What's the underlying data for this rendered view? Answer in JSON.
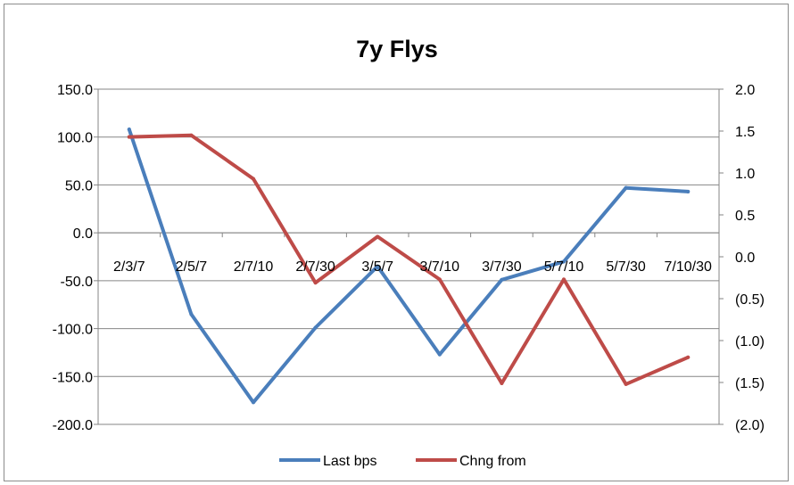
{
  "chart_data": {
    "type": "line",
    "title": "7y Flys",
    "categories": [
      "2/3/7",
      "2/5/7",
      "2/7/10",
      "2/7/30",
      "3/5/7",
      "3/7/10",
      "3/7/30",
      "5/7/10",
      "5/7/30",
      "7/10/30"
    ],
    "series": [
      {
        "name": "Last bps",
        "axis": "left",
        "color": "#4a7ebb",
        "values": [
          108,
          -85,
          -177,
          -99,
          -35,
          -127,
          -49,
          -30,
          47,
          43
        ]
      },
      {
        "name": "Chng from",
        "axis": "right",
        "color": "#be4b48",
        "values": [
          1.43,
          1.45,
          0.93,
          -0.31,
          0.24,
          -0.27,
          -1.51,
          -0.27,
          -1.52,
          -1.2
        ]
      }
    ],
    "left_axis": {
      "ylim": [
        -200,
        150
      ],
      "ticks": [
        150,
        100,
        50,
        0,
        -50,
        -100,
        -150,
        -200
      ],
      "tick_labels": [
        "150.0",
        "100.0",
        "50.0",
        "0.0",
        "-50.0",
        "-100.0",
        "-150.0",
        "-200.0"
      ]
    },
    "right_axis": {
      "ylim": [
        -2,
        2
      ],
      "ticks": [
        2,
        1.5,
        1,
        0.5,
        0,
        -0.5,
        -1,
        -1.5,
        -2
      ],
      "tick_labels": [
        "2.0",
        "1.5",
        "1.0",
        "0.5",
        "0.0",
        "(0.5)",
        "(1.0)",
        "(1.5)",
        "(2.0)"
      ],
      "negative_label_color": "#ff0000"
    },
    "grid": "horizontal",
    "legend_position": "bottom"
  }
}
